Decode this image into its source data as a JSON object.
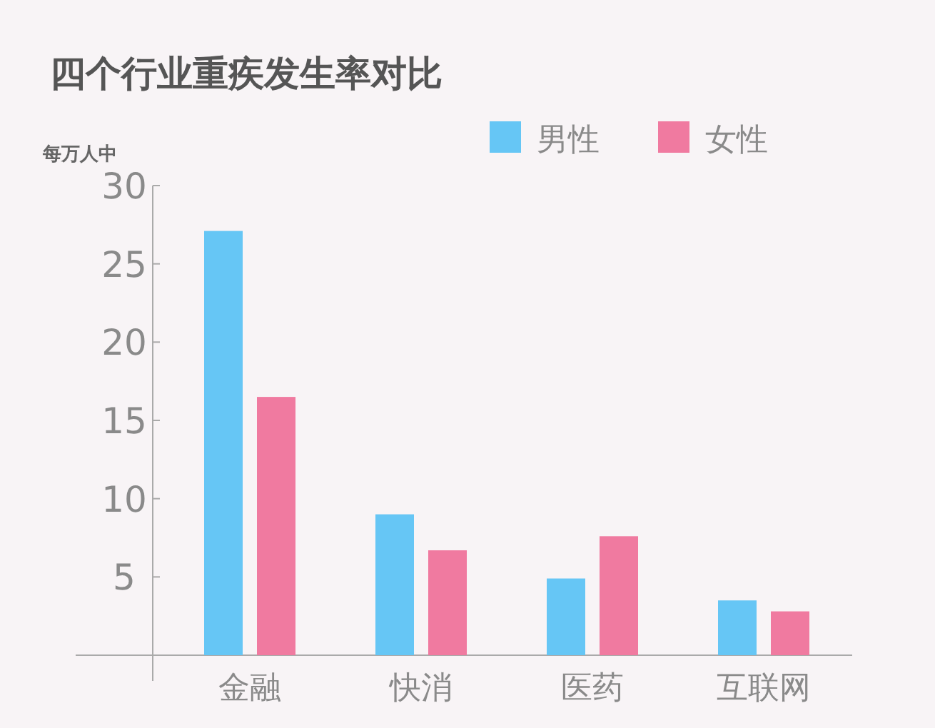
{
  "chart_data": {
    "type": "bar",
    "title": "四个行业重疾发生率对比",
    "ylabel": "每万人中",
    "categories": [
      "金融",
      "快消",
      "医药",
      "互联网"
    ],
    "series": [
      {
        "name": "男性",
        "color": "#66c6f5",
        "values": [
          27.1,
          9.0,
          4.9,
          3.5
        ]
      },
      {
        "name": "女性",
        "color": "#f07aa0",
        "values": [
          16.5,
          6.7,
          7.6,
          2.8
        ]
      }
    ],
    "ylim": [
      0,
      30
    ],
    "yticks": [
      {
        "value": 5,
        "label": "5"
      },
      {
        "value": 10,
        "label": "10"
      },
      {
        "value": 15,
        "label": "15"
      },
      {
        "value": 20,
        "label": "20"
      },
      {
        "value": 25,
        "label": "25"
      },
      {
        "value": 30,
        "label": "30"
      }
    ],
    "grid": false,
    "legend": "top right"
  }
}
